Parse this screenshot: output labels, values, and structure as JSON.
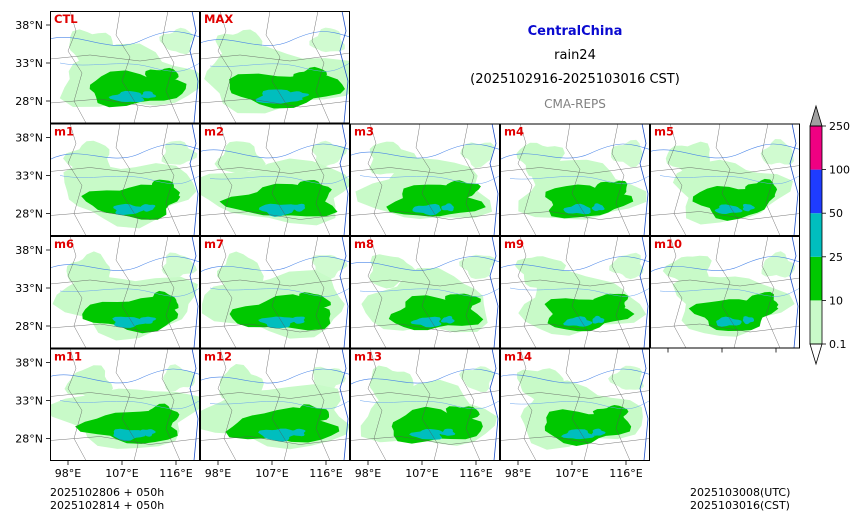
{
  "title": {
    "region": "CentralChina",
    "variable": "rain24",
    "period": "(2025102916-2025103016 CST)",
    "model": "CMA-REPS"
  },
  "panels": [
    {
      "label": "CTL",
      "row": 0,
      "col": 0,
      "intensity": 1.0
    },
    {
      "label": "MAX",
      "row": 0,
      "col": 1,
      "intensity": 1.3
    },
    {
      "label": "m1",
      "row": 1,
      "col": 0,
      "intensity": 0.95
    },
    {
      "label": "m2",
      "row": 1,
      "col": 1,
      "intensity": 1.1
    },
    {
      "label": "m3",
      "row": 1,
      "col": 2,
      "intensity": 0.9
    },
    {
      "label": "m4",
      "row": 1,
      "col": 3,
      "intensity": 0.85
    },
    {
      "label": "m5",
      "row": 1,
      "col": 4,
      "intensity": 0.8
    },
    {
      "label": "m6",
      "row": 2,
      "col": 0,
      "intensity": 1.0
    },
    {
      "label": "m7",
      "row": 2,
      "col": 1,
      "intensity": 1.05
    },
    {
      "label": "m8",
      "row": 2,
      "col": 2,
      "intensity": 0.9
    },
    {
      "label": "m9",
      "row": 2,
      "col": 3,
      "intensity": 0.85
    },
    {
      "label": "m10",
      "row": 2,
      "col": 4,
      "intensity": 0.8
    },
    {
      "label": "m11",
      "row": 3,
      "col": 0,
      "intensity": 1.0
    },
    {
      "label": "m12",
      "row": 3,
      "col": 1,
      "intensity": 1.1
    },
    {
      "label": "m13",
      "row": 3,
      "col": 2,
      "intensity": 0.95
    },
    {
      "label": "m14",
      "row": 3,
      "col": 3,
      "intensity": 0.9
    }
  ],
  "lat_ticks": [
    "38°N",
    "33°N",
    "28°N"
  ],
  "lon_ticks": [
    "98°E",
    "107°E",
    "116°E"
  ],
  "colorbar": {
    "ticks": [
      "0.1",
      "10",
      "25",
      "50",
      "100",
      "250"
    ],
    "colors": [
      "#c8fac8",
      "#00c800",
      "#00bebe",
      "#1e3cff",
      "#f00082"
    ],
    "over_color": "#a0a0a0",
    "under_color": "#ffffff"
  },
  "footer": {
    "init_utc": "2025102806  +  050h",
    "init_cst": "2025102814  +  050h",
    "valid_utc": "2025103008(UTC)",
    "valid_cst": "2025103016(CST)"
  }
}
